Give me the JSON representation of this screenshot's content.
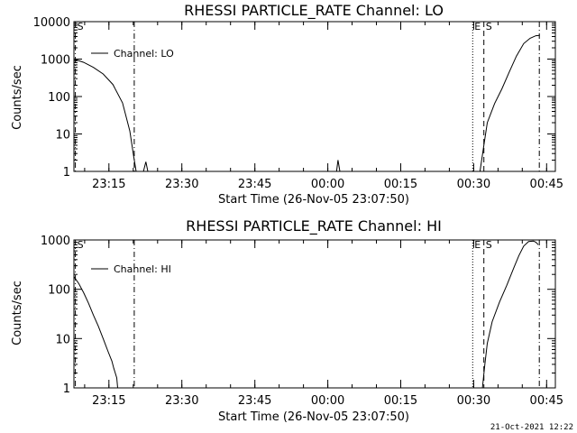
{
  "chart_data": [
    {
      "type": "line",
      "title": "RHESSI PARTICLE_RATE Channel: LO",
      "xlabel": "Start Time (26-Nov-05 23:07:50)",
      "ylabel": "Counts/sec",
      "yscale": "log",
      "ylim": [
        1,
        10000
      ],
      "xlim_minutes_after_start": [
        0,
        99
      ],
      "y_ticks": [
        {
          "value": 1,
          "label": "1"
        },
        {
          "value": 10,
          "label": "10"
        },
        {
          "value": 100,
          "label": "100"
        },
        {
          "value": 1000,
          "label": "1000"
        },
        {
          "value": 10000,
          "label": "10000"
        }
      ],
      "x_ticks": [
        {
          "minutes": 7.2,
          "label": "23:15"
        },
        {
          "minutes": 22.2,
          "label": "23:30"
        },
        {
          "minutes": 37.2,
          "label": "23:45"
        },
        {
          "minutes": 52.2,
          "label": "00:00"
        },
        {
          "minutes": 67.2,
          "label": "00:15"
        },
        {
          "minutes": 82.2,
          "label": "00:30"
        },
        {
          "minutes": 97.2,
          "label": "00:45"
        }
      ],
      "legend": {
        "position": "top-left",
        "entries": [
          "Channel: LO"
        ]
      },
      "markers": [
        {
          "minutes": 0.3,
          "style": "dashdot",
          "label": "S"
        },
        {
          "minutes": 12.4,
          "style": "dashdot",
          "label": ""
        },
        {
          "minutes": 82.0,
          "style": "dotted",
          "label": "E"
        },
        {
          "minutes": 84.3,
          "style": "dashed",
          "label": "S"
        },
        {
          "minutes": 95.7,
          "style": "dashdot",
          "label": ""
        }
      ],
      "series": [
        {
          "segments": [
            [
              [
                0,
                1000
              ],
              [
                2,
                820
              ],
              [
                4,
                600
              ],
              [
                6,
                400
              ],
              [
                8,
                210
              ],
              [
                10,
                68
              ],
              [
                11.5,
                12
              ],
              [
                12.3,
                2.5
              ],
              [
                12.8,
                1
              ]
            ],
            [
              [
                14.3,
                1
              ],
              [
                14.8,
                1.8
              ],
              [
                15.2,
                1
              ]
            ],
            [
              [
                54.0,
                1
              ],
              [
                54.3,
                2.0
              ],
              [
                54.7,
                1
              ]
            ],
            [
              [
                83.5,
                1
              ],
              [
                84.3,
                5
              ],
              [
                85.0,
                20
              ],
              [
                86.5,
                65
              ],
              [
                88.0,
                160
              ],
              [
                89.5,
                450
              ],
              [
                91.0,
                1200
              ],
              [
                92.5,
                2600
              ],
              [
                93.8,
                3600
              ],
              [
                95.0,
                4200
              ],
              [
                95.8,
                4300
              ]
            ]
          ]
        }
      ]
    },
    {
      "type": "line",
      "title": "RHESSI PARTICLE_RATE Channel: HI",
      "xlabel": "Start Time (26-Nov-05 23:07:50)",
      "ylabel": "Counts/sec",
      "yscale": "log",
      "ylim": [
        1,
        1000
      ],
      "xlim_minutes_after_start": [
        0,
        99
      ],
      "y_ticks": [
        {
          "value": 1,
          "label": "1"
        },
        {
          "value": 10,
          "label": "10"
        },
        {
          "value": 100,
          "label": "100"
        },
        {
          "value": 1000,
          "label": "1000"
        }
      ],
      "x_ticks": [
        {
          "minutes": 7.2,
          "label": "23:15"
        },
        {
          "minutes": 22.2,
          "label": "23:30"
        },
        {
          "minutes": 37.2,
          "label": "23:45"
        },
        {
          "minutes": 52.2,
          "label": "00:00"
        },
        {
          "minutes": 67.2,
          "label": "00:15"
        },
        {
          "minutes": 82.2,
          "label": "00:30"
        },
        {
          "minutes": 97.2,
          "label": "00:45"
        }
      ],
      "legend": {
        "position": "top-left",
        "entries": [
          "Channel: HI"
        ]
      },
      "markers": [
        {
          "minutes": 0.3,
          "style": "dashdot",
          "label": "S"
        },
        {
          "minutes": 12.4,
          "style": "dashdot",
          "label": ""
        },
        {
          "minutes": 82.0,
          "style": "dotted",
          "label": "E"
        },
        {
          "minutes": 84.3,
          "style": "dashed",
          "label": "S"
        },
        {
          "minutes": 95.7,
          "style": "dashdot",
          "label": ""
        }
      ],
      "series": [
        {
          "segments": [
            [
              [
                0,
                180
              ],
              [
                1,
                130
              ],
              [
                2,
                85
              ],
              [
                3,
                52
              ],
              [
                4,
                30
              ],
              [
                5,
                18
              ],
              [
                6,
                10
              ],
              [
                7,
                5.5
              ],
              [
                7.8,
                3.5
              ],
              [
                8.2,
                2.5
              ],
              [
                8.8,
                1.6
              ],
              [
                9.0,
                1
              ]
            ],
            [
              [
                84.0,
                1
              ],
              [
                84.5,
                3
              ],
              [
                85.0,
                8
              ],
              [
                86.0,
                22
              ],
              [
                87.5,
                55
              ],
              [
                89.0,
                120
              ],
              [
                90.5,
                280
              ],
              [
                91.5,
                480
              ],
              [
                92.5,
                750
              ],
              [
                93.5,
                930
              ],
              [
                94.5,
                950
              ],
              [
                95.0,
                900
              ],
              [
                95.5,
                800
              ]
            ]
          ]
        }
      ]
    }
  ],
  "footer": {
    "timestamp": "21-Oct-2021 12:22"
  }
}
